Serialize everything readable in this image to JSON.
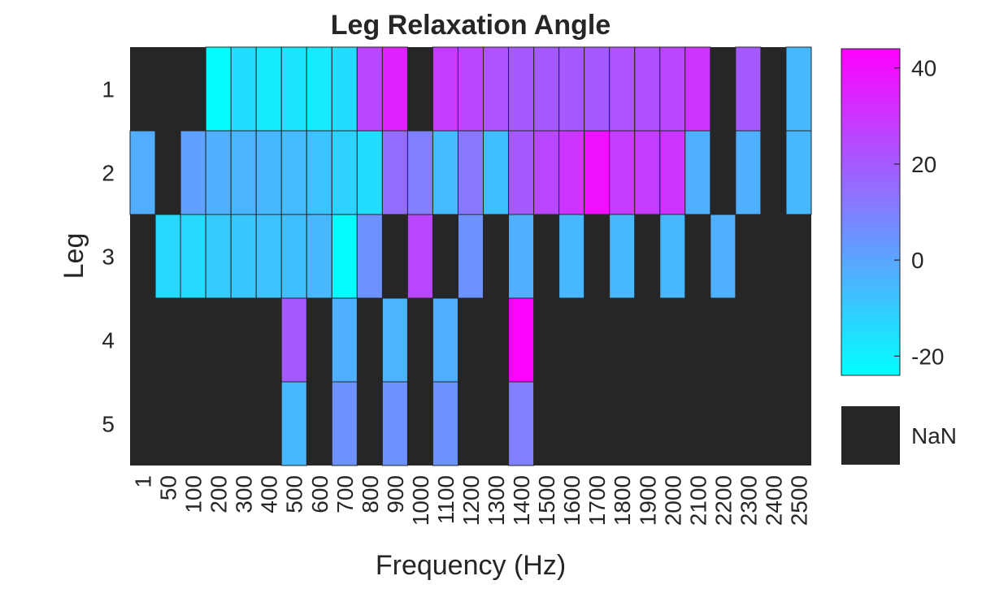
{
  "chart_data": {
    "type": "heatmap",
    "title": "Leg Relaxation Angle",
    "xlabel": "Frequency (Hz)",
    "ylabel": "Leg",
    "x": [
      "1",
      "50",
      "100",
      "200",
      "300",
      "400",
      "500",
      "600",
      "700",
      "800",
      "900",
      "1000",
      "1100",
      "1200",
      "1300",
      "1400",
      "1500",
      "1600",
      "1700",
      "1800",
      "1900",
      "2000",
      "2100",
      "2200",
      "2300",
      "2400",
      "2500"
    ],
    "y": [
      "1",
      "2",
      "3",
      "4",
      "5"
    ],
    "values": [
      [
        null,
        null,
        null,
        -23,
        -15,
        -19,
        -17,
        -18,
        -15,
        25,
        35,
        null,
        28,
        25,
        22,
        20,
        20,
        20,
        20,
        22,
        23,
        25,
        30,
        null,
        20,
        null,
        -5
      ],
      [
        -2,
        null,
        1,
        -3,
        -4,
        -5,
        -6,
        -8,
        -12,
        -15,
        15,
        10,
        -6,
        12,
        -7,
        20,
        25,
        30,
        40,
        28,
        28,
        30,
        -3,
        null,
        -3,
        null,
        -5
      ],
      [
        null,
        -14,
        -14,
        -10,
        -9,
        -8,
        -7,
        -5,
        -23,
        5,
        null,
        25,
        null,
        5,
        null,
        -3,
        null,
        -5,
        null,
        -5,
        null,
        -5,
        null,
        -3,
        null,
        null,
        null
      ],
      [
        null,
        null,
        null,
        null,
        null,
        null,
        20,
        null,
        -3,
        null,
        -4,
        null,
        -3,
        null,
        null,
        43,
        null,
        null,
        null,
        null,
        null,
        null,
        null,
        null,
        null,
        null,
        null
      ],
      [
        null,
        null,
        null,
        null,
        null,
        null,
        -5,
        null,
        5,
        null,
        5,
        null,
        5,
        null,
        null,
        10,
        null,
        null,
        null,
        null,
        null,
        null,
        null,
        null,
        null,
        null,
        null
      ]
    ],
    "colormap": [
      "#00ffff",
      "#ff00ff"
    ],
    "clim": [
      -24,
      44
    ],
    "colorbar_ticks": [
      "40",
      "20",
      "0",
      "-20"
    ],
    "colorbar_tick_values": [
      40,
      20,
      0,
      -20
    ],
    "nan_color": "#262626",
    "nan_label": "NaN"
  }
}
